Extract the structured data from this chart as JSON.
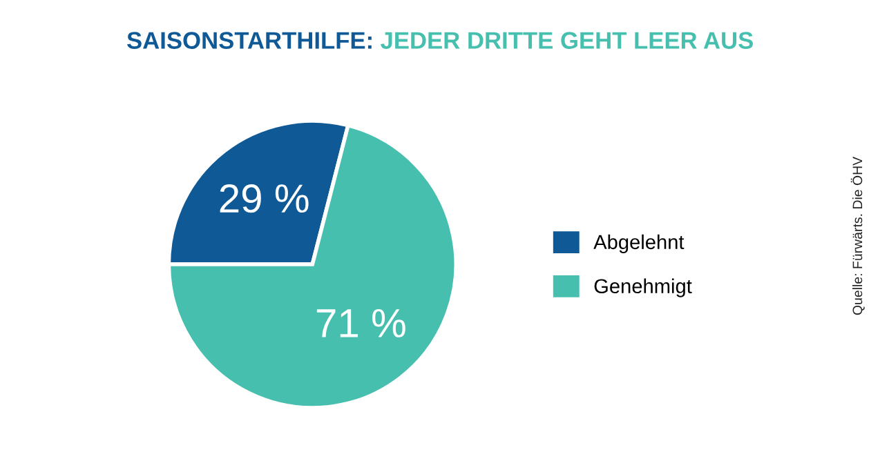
{
  "chart_data": {
    "type": "pie",
    "title": "SAISONSTARTHILFE:",
    "subtitle": "JEDER DRITTE GEHT LEER AUS",
    "categories": [
      "Abgelehnt",
      "Genehmigt"
    ],
    "values": [
      29,
      71
    ],
    "colors": [
      "#0f5a96",
      "#47bfae"
    ],
    "value_labels": [
      "29 %",
      "71 %"
    ],
    "legend": "right",
    "annotations": [
      "Quelle: Fürwärts. Die ÖHV"
    ]
  }
}
